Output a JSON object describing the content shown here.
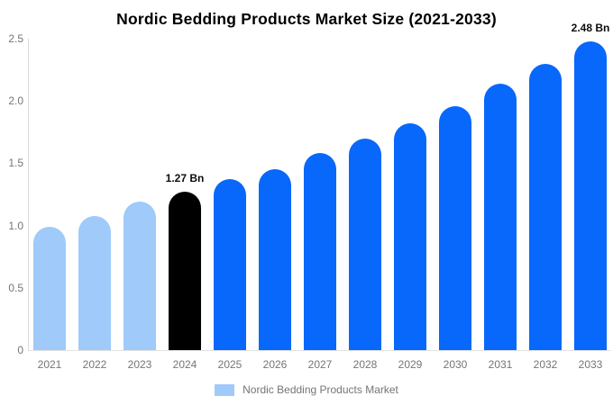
{
  "title": "Nordic Bedding Products Market Size (2021-2033)",
  "colors": {
    "light_blue": "#9FCAF9",
    "bright_blue": "#0768FB",
    "black": "#000000",
    "axis_line": "#d9d9d9",
    "tick_text": "#757575"
  },
  "chart_data": {
    "type": "bar",
    "title": "Nordic Bedding Products Market Size (2021-2033)",
    "categories": [
      "2021",
      "2022",
      "2023",
      "2024",
      "2025",
      "2026",
      "2027",
      "2028",
      "2029",
      "2030",
      "2031",
      "2032",
      "2033"
    ],
    "values": [
      0.99,
      1.08,
      1.19,
      1.27,
      1.37,
      1.45,
      1.58,
      1.7,
      1.82,
      1.96,
      2.14,
      2.3,
      2.48
    ],
    "bar_colors": [
      "#9FCAF9",
      "#9FCAF9",
      "#9FCAF9",
      "#000000",
      "#0768FB",
      "#0768FB",
      "#0768FB",
      "#0768FB",
      "#0768FB",
      "#0768FB",
      "#0768FB",
      "#0768FB",
      "#0768FB"
    ],
    "ylim": [
      0,
      2.5
    ],
    "ytick_values": [
      0,
      0.5,
      1.0,
      1.5,
      2.0,
      2.5
    ],
    "ytick_labels": [
      "0",
      "0.5",
      "1.0",
      "1.5",
      "2.0",
      "2.5"
    ],
    "grid": "off",
    "legend_position": "bottom-center",
    "annotations": [
      {
        "category": "2024",
        "label": "1.27 Bn"
      },
      {
        "category": "2033",
        "label": "2.48 Bn"
      }
    ],
    "series_name": "Nordic Bedding Products Market"
  },
  "legend": {
    "label": "Nordic Bedding Products Market",
    "swatch_color": "#9FCAF9"
  }
}
